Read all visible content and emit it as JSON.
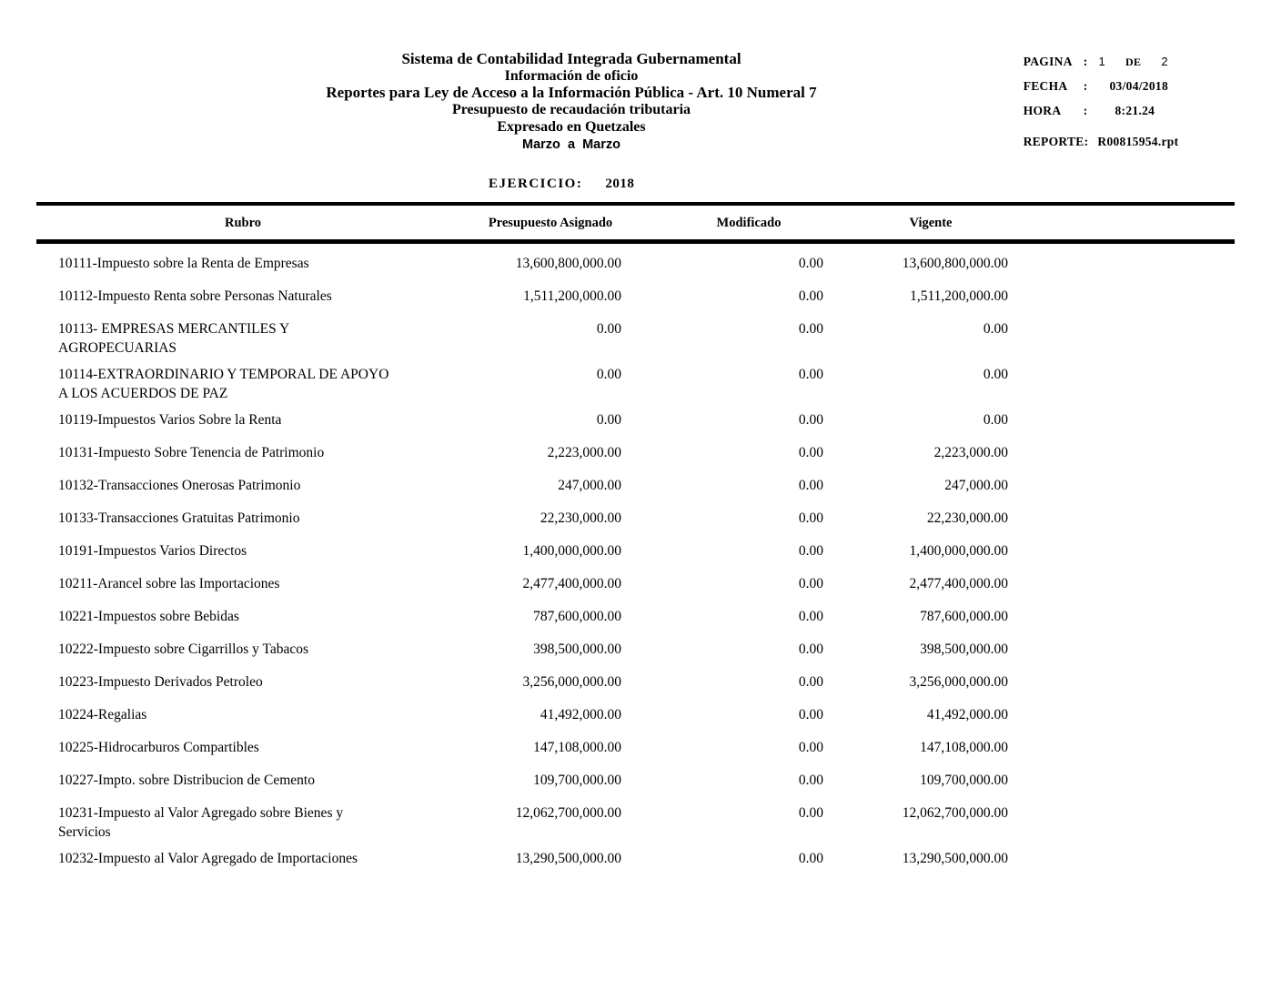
{
  "header": {
    "title_lines": [
      "Sistema de Contabilidad Integrada Gubernamental",
      "Información de oficio",
      "Reportes para Ley de Acceso a la Información Pública - Art. 10 Numeral 7",
      "Presupuesto de recaudación tributaria",
      "Expresado en Quetzales",
      "Marzo  a  Marzo"
    ],
    "page_info": {
      "colon": ":",
      "pagina_label": "PAGINA",
      "pagina_value": "1",
      "de_label": "DE",
      "de_value": "2",
      "fecha_label": "FECHA",
      "fecha_value": "03/04/2018",
      "hora_label": "HORA",
      "hora_value": "8:21.24",
      "reporte_label": "REPORTE:",
      "reporte_value": "R00815954.rpt"
    },
    "ejercicio_label": "EJERCICIO:",
    "ejercicio_value": "2018"
  },
  "table": {
    "columns": [
      "Rubro",
      "Presupuesto Asignado",
      "Modificado",
      "Vigente"
    ],
    "rows": [
      {
        "rubro": "10111-Impuesto sobre la Renta de Empresas",
        "asignado": "13,600,800,000.00",
        "modificado": "0.00",
        "vigente": "13,600,800,000.00"
      },
      {
        "rubro": "10112-Impuesto Renta sobre Personas Naturales",
        "asignado": "1,511,200,000.00",
        "modificado": "0.00",
        "vigente": "1,511,200,000.00"
      },
      {
        "rubro": "10113- EMPRESAS MERCANTILES Y\nAGROPECUARIAS",
        "asignado": "0.00",
        "modificado": "0.00",
        "vigente": "0.00"
      },
      {
        "rubro": "10114-EXTRAORDINARIO Y TEMPORAL DE APOYO\nA LOS ACUERDOS DE PAZ",
        "asignado": "0.00",
        "modificado": "0.00",
        "vigente": "0.00"
      },
      {
        "rubro": "10119-Impuestos Varios Sobre la Renta",
        "asignado": "0.00",
        "modificado": "0.00",
        "vigente": "0.00"
      },
      {
        "rubro": "10131-Impuesto Sobre Tenencia de Patrimonio",
        "asignado": "2,223,000.00",
        "modificado": "0.00",
        "vigente": "2,223,000.00"
      },
      {
        "rubro": "10132-Transacciones Onerosas Patrimonio",
        "asignado": "247,000.00",
        "modificado": "0.00",
        "vigente": "247,000.00"
      },
      {
        "rubro": "10133-Transacciones Gratuitas Patrimonio",
        "asignado": "22,230,000.00",
        "modificado": "0.00",
        "vigente": "22,230,000.00"
      },
      {
        "rubro": "10191-Impuestos Varios Directos",
        "asignado": "1,400,000,000.00",
        "modificado": "0.00",
        "vigente": "1,400,000,000.00"
      },
      {
        "rubro": "10211-Arancel sobre las Importaciones",
        "asignado": "2,477,400,000.00",
        "modificado": "0.00",
        "vigente": "2,477,400,000.00"
      },
      {
        "rubro": "10221-Impuestos sobre Bebidas",
        "asignado": "787,600,000.00",
        "modificado": "0.00",
        "vigente": "787,600,000.00"
      },
      {
        "rubro": "10222-Impuesto sobre Cigarrillos y Tabacos",
        "asignado": "398,500,000.00",
        "modificado": "0.00",
        "vigente": "398,500,000.00"
      },
      {
        "rubro": "10223-Impuesto Derivados Petroleo",
        "asignado": "3,256,000,000.00",
        "modificado": "0.00",
        "vigente": "3,256,000,000.00"
      },
      {
        "rubro": "10224-Regalias",
        "asignado": "41,492,000.00",
        "modificado": "0.00",
        "vigente": "41,492,000.00"
      },
      {
        "rubro": "10225-Hidrocarburos Compartibles",
        "asignado": "147,108,000.00",
        "modificado": "0.00",
        "vigente": "147,108,000.00"
      },
      {
        "rubro": "10227-Impto. sobre Distribucion de Cemento",
        "asignado": "109,700,000.00",
        "modificado": "0.00",
        "vigente": "109,700,000.00"
      },
      {
        "rubro": "10231-Impuesto al Valor Agregado sobre Bienes y\nServicios",
        "asignado": "12,062,700,000.00",
        "modificado": "0.00",
        "vigente": "12,062,700,000.00"
      },
      {
        "rubro": "10232-Impuesto al Valor Agregado de Importaciones",
        "asignado": "13,290,500,000.00",
        "modificado": "0.00",
        "vigente": "13,290,500,000.00"
      }
    ]
  }
}
